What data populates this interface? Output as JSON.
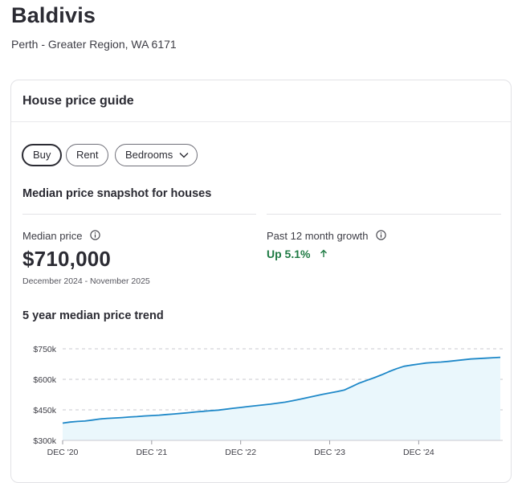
{
  "suburb": {
    "name": "Baldivis",
    "region": "Perth - Greater Region, WA 6171"
  },
  "card": {
    "title": "House price guide",
    "filters": {
      "buy_label": "Buy",
      "rent_label": "Rent",
      "bedrooms_label": "Bedrooms",
      "selected": "Buy"
    },
    "snapshot": {
      "title": "Median price snapshot for houses",
      "median_label": "Median price",
      "median_value": "$710,000",
      "median_period": "December 2024 - November 2025",
      "growth_label": "Past 12 month growth",
      "growth_value": "Up 5.1%"
    },
    "trend_title": "5 year median price trend"
  },
  "colors": {
    "line": "#1e88c8",
    "fill": "#eaf7fc",
    "growth": "#1e7a43"
  },
  "icons": {
    "info": "info-icon",
    "up_arrow": "arrow-up-icon",
    "bedrooms_dropdown": "chevron-down-icon"
  },
  "chart_data": {
    "type": "area",
    "y_ticks": [
      "$750k",
      "$600k",
      "$450k",
      "$300k"
    ],
    "y_tick_values": [
      750000,
      600000,
      450000,
      300000
    ],
    "ylim": [
      300000,
      750000
    ],
    "x_ticks": [
      "DEC '20",
      "DEC '21",
      "DEC '22",
      "DEC '23",
      "DEC '24"
    ],
    "x_tick_values": [
      "2020-12",
      "2021-12",
      "2022-12",
      "2023-12",
      "2024-12"
    ],
    "x": [
      "2020-12",
      "2021-01",
      "2021-02",
      "2021-03",
      "2021-04",
      "2021-05",
      "2021-06",
      "2021-07",
      "2021-08",
      "2021-09",
      "2021-10",
      "2021-11",
      "2021-12",
      "2022-01",
      "2022-02",
      "2022-03",
      "2022-04",
      "2022-05",
      "2022-06",
      "2022-07",
      "2022-08",
      "2022-09",
      "2022-10",
      "2022-11",
      "2022-12",
      "2023-01",
      "2023-02",
      "2023-03",
      "2023-04",
      "2023-05",
      "2023-06",
      "2023-07",
      "2023-08",
      "2023-09",
      "2023-10",
      "2023-11",
      "2023-12",
      "2024-01",
      "2024-02",
      "2024-03",
      "2024-04",
      "2024-05",
      "2024-06",
      "2024-07",
      "2024-08",
      "2024-09",
      "2024-10",
      "2024-11",
      "2024-12",
      "2025-01",
      "2025-02",
      "2025-03",
      "2025-04",
      "2025-05",
      "2025-06",
      "2025-07",
      "2025-08",
      "2025-09",
      "2025-10",
      "2025-11"
    ],
    "values": [
      385000,
      390000,
      393000,
      395000,
      400000,
      405000,
      408000,
      410000,
      412000,
      415000,
      417000,
      420000,
      422000,
      424000,
      427000,
      430000,
      433000,
      436000,
      440000,
      443000,
      446000,
      449000,
      453000,
      458000,
      462000,
      466000,
      470000,
      474000,
      478000,
      483000,
      488000,
      495000,
      502000,
      510000,
      518000,
      526000,
      533000,
      540000,
      548000,
      565000,
      582000,
      595000,
      608000,
      622000,
      638000,
      652000,
      664000,
      670000,
      675000,
      680000,
      683000,
      685000,
      688000,
      692000,
      696000,
      700000,
      702000,
      704000,
      706000,
      708000
    ],
    "grid": "dashed horizontal",
    "legend": "none"
  }
}
